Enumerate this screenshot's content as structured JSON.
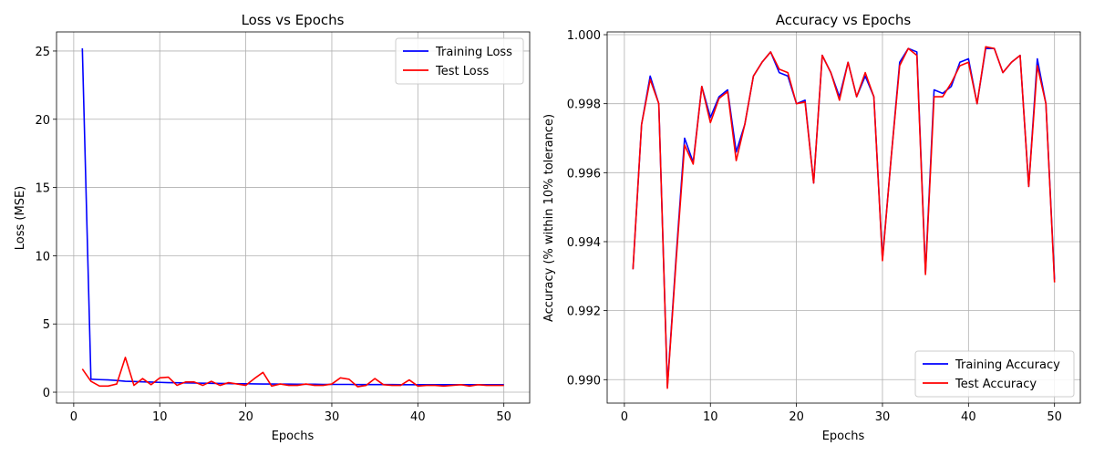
{
  "chart_data": [
    {
      "type": "line",
      "title": "Loss vs Epochs",
      "xlabel": "Epochs",
      "ylabel": "Loss (MSE)",
      "xlim": [
        -2.0,
        53.0
      ],
      "ylim": [
        -0.8,
        26.4
      ],
      "xticks": [
        0,
        10,
        20,
        30,
        40,
        50
      ],
      "yticks": [
        0,
        5,
        10,
        15,
        20,
        25
      ],
      "ytick_labels": [
        "0",
        "5",
        "10",
        "15",
        "20",
        "25"
      ],
      "grid": true,
      "legend_position": "top-right",
      "x": [
        1,
        2,
        3,
        4,
        5,
        6,
        7,
        8,
        9,
        10,
        11,
        12,
        13,
        14,
        15,
        16,
        17,
        18,
        19,
        20,
        21,
        22,
        23,
        24,
        25,
        26,
        27,
        28,
        29,
        30,
        31,
        32,
        33,
        34,
        35,
        36,
        37,
        38,
        39,
        40,
        41,
        42,
        43,
        44,
        45,
        46,
        47,
        48,
        49,
        50
      ],
      "series": [
        {
          "name": "Training Loss",
          "color": "#0000ff",
          "values": [
            25.2,
            0.95,
            0.92,
            0.9,
            0.86,
            0.8,
            0.78,
            0.76,
            0.74,
            0.72,
            0.7,
            0.69,
            0.68,
            0.67,
            0.66,
            0.65,
            0.64,
            0.63,
            0.62,
            0.62,
            0.61,
            0.6,
            0.6,
            0.59,
            0.59,
            0.58,
            0.58,
            0.58,
            0.57,
            0.57,
            0.57,
            0.57,
            0.56,
            0.56,
            0.56,
            0.56,
            0.56,
            0.55,
            0.55,
            0.55,
            0.55,
            0.55,
            0.55,
            0.55,
            0.55,
            0.55,
            0.55,
            0.55,
            0.55,
            0.55
          ]
        },
        {
          "name": "Test Loss",
          "color": "#ff0000",
          "values": [
            1.7,
            0.8,
            0.45,
            0.45,
            0.6,
            2.55,
            0.5,
            1.0,
            0.55,
            1.05,
            1.1,
            0.5,
            0.75,
            0.75,
            0.5,
            0.8,
            0.5,
            0.7,
            0.6,
            0.5,
            1.0,
            1.45,
            0.45,
            0.6,
            0.5,
            0.5,
            0.6,
            0.5,
            0.5,
            0.6,
            1.05,
            0.95,
            0.4,
            0.5,
            1.0,
            0.55,
            0.5,
            0.5,
            0.9,
            0.45,
            0.5,
            0.5,
            0.45,
            0.5,
            0.55,
            0.45,
            0.55,
            0.5,
            0.5,
            0.5
          ]
        }
      ]
    },
    {
      "type": "line",
      "title": "Accuracy vs Epochs",
      "xlabel": "Epochs",
      "ylabel": "Accuracy (% within 10% tolerance)",
      "xlim": [
        -2.0,
        53.0
      ],
      "ylim": [
        0.98932,
        1.00008
      ],
      "xticks": [
        0,
        10,
        20,
        30,
        40,
        50
      ],
      "yticks": [
        0.99,
        0.992,
        0.994,
        0.996,
        0.998,
        1.0
      ],
      "ytick_labels": [
        "0.990",
        "0.992",
        "0.994",
        "0.996",
        "0.998",
        "1.000"
      ],
      "grid": true,
      "legend_position": "bottom-right",
      "x": [
        1,
        2,
        3,
        4,
        5,
        6,
        7,
        8,
        9,
        10,
        11,
        12,
        13,
        14,
        15,
        16,
        17,
        18,
        19,
        20,
        21,
        22,
        23,
        24,
        25,
        26,
        27,
        28,
        29,
        30,
        31,
        32,
        33,
        34,
        35,
        36,
        37,
        38,
        39,
        40,
        41,
        42,
        43,
        44,
        45,
        46,
        47,
        48,
        49,
        50
      ],
      "series": [
        {
          "name": "Training Accuracy",
          "color": "#0000ff",
          "values": [
            0.9932,
            0.9974,
            0.9988,
            0.998,
            0.9898,
            0.9935,
            0.997,
            0.9963,
            0.9985,
            0.9976,
            0.9982,
            0.9984,
            0.9966,
            0.9974,
            0.9988,
            0.9992,
            0.9995,
            0.9989,
            0.9988,
            0.998,
            0.9981,
            0.9957,
            0.9994,
            0.9989,
            0.9982,
            0.9992,
            0.9982,
            0.9988,
            0.9982,
            0.9935,
            0.9964,
            0.9992,
            0.9996,
            0.9995,
            0.9931,
            0.9984,
            0.9983,
            0.9985,
            0.9992,
            0.9993,
            0.998,
            0.9996,
            0.9996,
            0.9989,
            0.9992,
            0.9994,
            0.9956,
            0.9993,
            0.998,
            0.9929
          ]
        },
        {
          "name": "Test Accuracy",
          "color": "#ff0000",
          "values": [
            0.9932,
            0.9974,
            0.9987,
            0.998,
            0.98975,
            0.9934,
            0.9968,
            0.99625,
            0.9985,
            0.99745,
            0.99815,
            0.99835,
            0.99635,
            0.9974,
            0.9988,
            0.9992,
            0.9995,
            0.999,
            0.9989,
            0.998,
            0.99805,
            0.9957,
            0.9994,
            0.9989,
            0.9981,
            0.9992,
            0.9982,
            0.9989,
            0.9982,
            0.99345,
            0.9964,
            0.9991,
            0.9996,
            0.9994,
            0.99305,
            0.9982,
            0.9982,
            0.9986,
            0.9991,
            0.9992,
            0.998,
            0.99965,
            0.9996,
            0.9989,
            0.9992,
            0.9994,
            0.9956,
            0.9991,
            0.998,
            0.99282
          ]
        }
      ]
    }
  ]
}
